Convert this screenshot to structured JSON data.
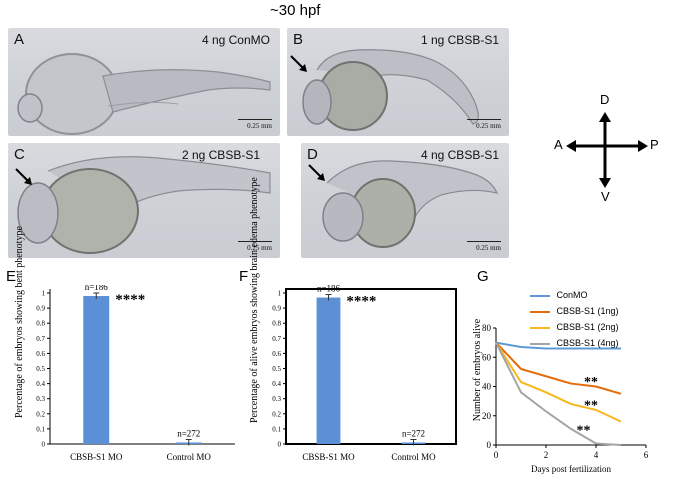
{
  "title": "~30 hpf",
  "panels": [
    {
      "letter": "A",
      "condition": "4 ng ConMO",
      "scale": "0.25 mm"
    },
    {
      "letter": "B",
      "condition": "1 ng CBSB-S1",
      "scale": "0.25 mm"
    },
    {
      "letter": "C",
      "condition": "2 ng CBSB-S1",
      "scale": "0.25 mm"
    },
    {
      "letter": "D",
      "condition": "4 ng CBSB-S1",
      "scale": "0.25 mm"
    }
  ],
  "axes_compass": {
    "d": "D",
    "v": "V",
    "a": "A",
    "p": "P"
  },
  "colors": {
    "bar": "#5b8fd6",
    "conmo": "#5b9bd5",
    "cbsb1": "#e46c0a",
    "cbsb2": "#f5b81c",
    "cbsb4": "#a5a5a5"
  },
  "chart_data": [
    {
      "panel": "E",
      "type": "bar",
      "ylabel": "Percentage of embryos showing bent phenotype",
      "ylim": [
        0,
        1
      ],
      "yticks": [
        "0",
        "0.1",
        "0.2",
        "0.3",
        "0.4",
        "0.5",
        "0.6",
        "0.7",
        "0.8",
        "0.9",
        "1"
      ],
      "categories": [
        "CBSB-S1 MO",
        "Control MO"
      ],
      "values": [
        0.98,
        0.01
      ],
      "annotations": [
        "n=186",
        "n=272"
      ],
      "significance": "****",
      "grid": false
    },
    {
      "panel": "F",
      "type": "bar",
      "ylabel": "Percentage of alive embryos showing brain edema phenotype",
      "ylim": [
        0,
        1
      ],
      "yticks": [
        "0",
        "0.1",
        "0.2",
        "0.3",
        "0.4",
        "0.5",
        "0.6",
        "0.7",
        "0.8",
        "0.9",
        "1"
      ],
      "categories": [
        "CBSB-S1 MO",
        "Control MO"
      ],
      "values": [
        0.97,
        0.01
      ],
      "annotations": [
        "n=186",
        "n=272"
      ],
      "significance": "****",
      "grid": false
    },
    {
      "panel": "G",
      "type": "line",
      "xlabel": "Days post fertilization",
      "ylabel": "Number of embryos alive",
      "xlim": [
        0,
        6
      ],
      "ylim": [
        0,
        80
      ],
      "xticks": [
        "0",
        "2",
        "4",
        "6"
      ],
      "yticks": [
        "0",
        "20",
        "40",
        "60",
        "80"
      ],
      "legend_position": "top-right",
      "series": [
        {
          "name": "ConMO",
          "x": [
            0,
            1,
            2,
            3,
            4,
            5
          ],
          "values": [
            70,
            67,
            66,
            66,
            66,
            66
          ]
        },
        {
          "name": "CBSB-S1 (1ng)",
          "x": [
            0,
            1,
            2,
            3,
            4,
            5
          ],
          "values": [
            70,
            52,
            47,
            42,
            40,
            35
          ]
        },
        {
          "name": "CBSB-S1 (2ng)",
          "x": [
            0,
            1,
            2,
            3,
            4,
            5
          ],
          "values": [
            70,
            43,
            36,
            28,
            24,
            16
          ]
        },
        {
          "name": "CBSB-S1 (4ng)",
          "x": [
            0,
            1,
            2,
            3,
            4,
            5
          ],
          "values": [
            70,
            36,
            23,
            11,
            1,
            0
          ]
        }
      ],
      "significance": [
        "**",
        "**",
        "**"
      ],
      "grid": false
    }
  ],
  "panel_letters": {
    "e": "E",
    "f": "F",
    "g": "G"
  }
}
